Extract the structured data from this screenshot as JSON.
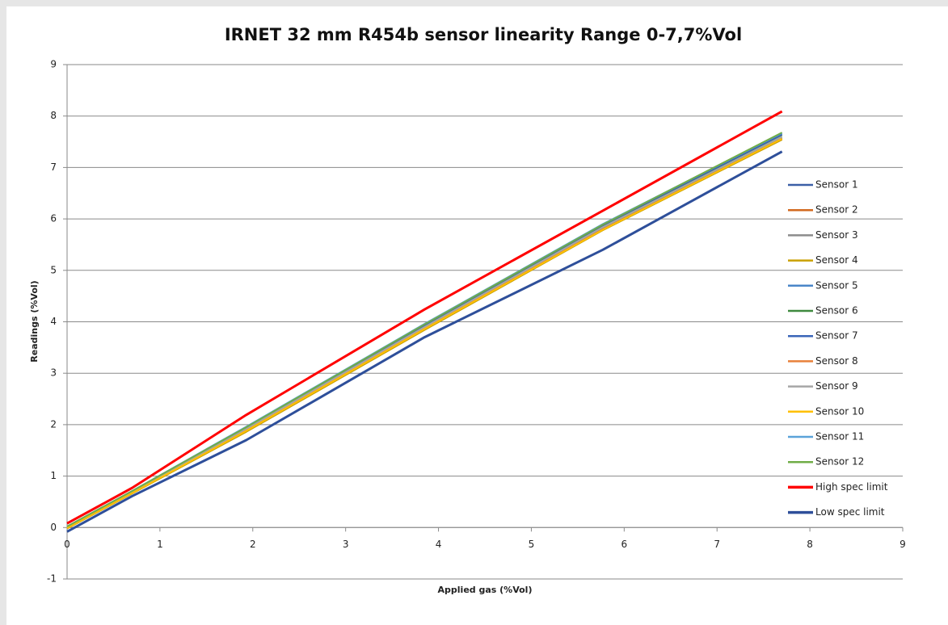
{
  "chart_data": {
    "type": "line",
    "title": "IRNET 32 mm R454b sensor linearity Range 0-7,7%Vol",
    "x_label": "Applied gas (%Vol)",
    "y_label": "Readings (%Vol)",
    "x": [
      0,
      0.7,
      1.93,
      3.85,
      5.77,
      7.7
    ],
    "xlim": [
      0,
      9
    ],
    "xticks": [
      0,
      1,
      2,
      3,
      4,
      5,
      6,
      7,
      8,
      9
    ],
    "ylim": [
      -1,
      9
    ],
    "yticks": [
      -1,
      0,
      1,
      2,
      3,
      4,
      5,
      6,
      7,
      8,
      9
    ],
    "grid": true,
    "legend": "right",
    "series": [
      {
        "name": "Sensor 1",
        "color": "#3b5fa6",
        "width": 2,
        "values": [
          0,
          0.69,
          1.92,
          3.9,
          5.83,
          7.58
        ]
      },
      {
        "name": "Sensor 2",
        "color": "#d2691e",
        "width": 2,
        "values": [
          0,
          0.68,
          1.9,
          3.88,
          5.8,
          7.55
        ]
      },
      {
        "name": "Sensor 3",
        "color": "#8c8c8c",
        "width": 2,
        "values": [
          0,
          0.69,
          1.91,
          3.89,
          5.82,
          7.57
        ]
      },
      {
        "name": "Sensor 4",
        "color": "#c9a000",
        "width": 2,
        "values": [
          -0.02,
          0.66,
          1.86,
          3.84,
          5.78,
          7.54
        ]
      },
      {
        "name": "Sensor 5",
        "color": "#4a86c8",
        "width": 2,
        "values": [
          0.02,
          0.71,
          1.96,
          3.95,
          5.9,
          7.66
        ]
      },
      {
        "name": "Sensor 6",
        "color": "#3f8a3f",
        "width": 2,
        "values": [
          0.01,
          0.7,
          1.94,
          3.93,
          5.87,
          7.63
        ]
      },
      {
        "name": "Sensor 7",
        "color": "#3a65b8",
        "width": 2,
        "values": [
          0.01,
          0.7,
          1.95,
          3.94,
          5.88,
          7.64
        ]
      },
      {
        "name": "Sensor 8",
        "color": "#e8803a",
        "width": 2,
        "values": [
          0,
          0.68,
          1.89,
          3.87,
          5.8,
          7.56
        ]
      },
      {
        "name": "Sensor 9",
        "color": "#a6a6a6",
        "width": 2,
        "values": [
          0,
          0.69,
          1.92,
          3.9,
          5.84,
          7.6
        ]
      },
      {
        "name": "Sensor 10",
        "color": "#ffc000",
        "width": 2,
        "values": [
          -0.01,
          0.67,
          1.88,
          3.86,
          5.79,
          7.56
        ]
      },
      {
        "name": "Sensor 11",
        "color": "#5ba3d9",
        "width": 2,
        "values": [
          0.02,
          0.71,
          1.96,
          3.96,
          5.9,
          7.67
        ]
      },
      {
        "name": "Sensor 12",
        "color": "#70ad47",
        "width": 2,
        "values": [
          0.02,
          0.71,
          1.95,
          3.95,
          5.89,
          7.68
        ]
      },
      {
        "name": "High spec limit",
        "color": "#ff0000",
        "width": 3,
        "values": [
          0.08,
          0.77,
          2.19,
          4.24,
          6.16,
          8.09
        ]
      },
      {
        "name": "Low spec limit",
        "color": "#2e4f9a",
        "width": 3,
        "values": [
          -0.08,
          0.61,
          1.7,
          3.7,
          5.4,
          7.31
        ]
      }
    ]
  }
}
